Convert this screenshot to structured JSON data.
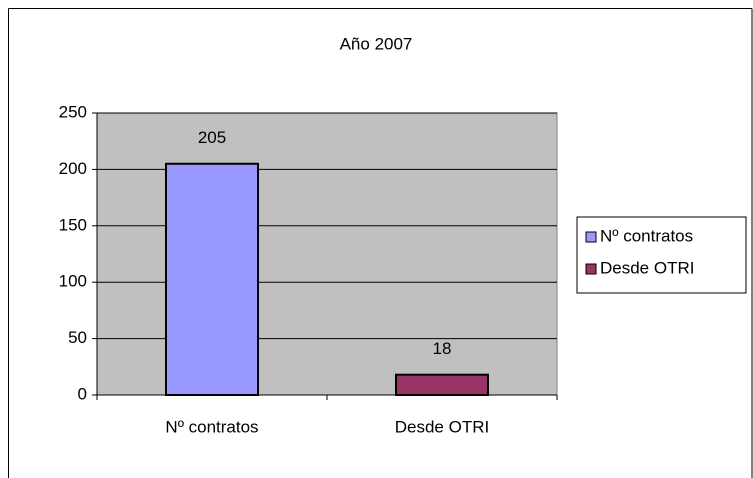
{
  "chart_data": {
    "type": "bar",
    "title": "Año 2007",
    "categories": [
      "Nº contratos",
      "Desde OTRI"
    ],
    "values": [
      205,
      18
    ],
    "colors": [
      "#9999ff",
      "#993366"
    ],
    "ylim": [
      0,
      250
    ],
    "yticks": [
      0,
      50,
      100,
      150,
      200,
      250
    ],
    "grid": true,
    "legend": "right"
  }
}
